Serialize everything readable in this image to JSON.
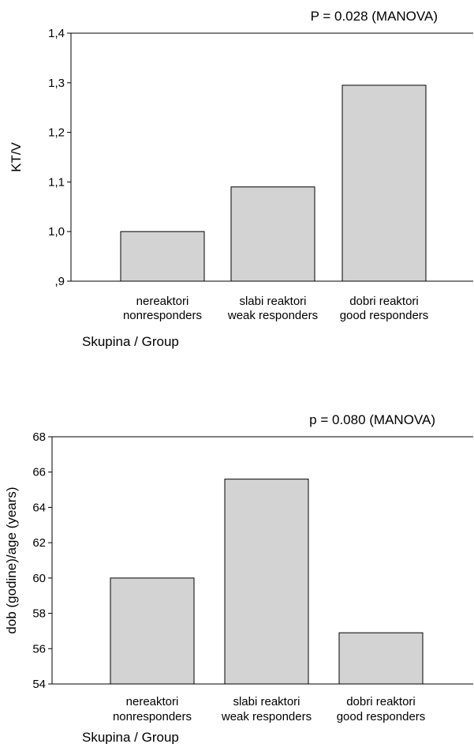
{
  "chart_data": [
    {
      "type": "bar",
      "annotation": "P = 0.028 (MANOVA)",
      "ylabel": "KT/V",
      "xlabel": "Skupina / Group",
      "categories": [
        [
          "nereaktori",
          "nonresponders"
        ],
        [
          "slabi reaktori",
          "weak responders"
        ],
        [
          "dobri reaktori",
          "good responders"
        ]
      ],
      "values": [
        1.0,
        1.09,
        1.295
      ],
      "ylim": [
        0.9,
        1.4
      ],
      "yticks": [
        0.9,
        1.0,
        1.1,
        1.2,
        1.3,
        1.4
      ],
      "ytick_labels": [
        ",9",
        "1,0",
        "1,1",
        "1,2",
        "1,3",
        "1,4"
      ],
      "bar_color": "#d3d3d3",
      "grid": false
    },
    {
      "type": "bar",
      "annotation": "p = 0.080 (MANOVA)",
      "ylabel": "dob (godine)/age (years)",
      "xlabel": "Skupina / Group",
      "categories": [
        [
          "nereaktori",
          "nonresponders"
        ],
        [
          "slabi reaktori",
          "weak responders"
        ],
        [
          "dobri reaktori",
          "good responders"
        ]
      ],
      "values": [
        60.0,
        65.6,
        56.9
      ],
      "ylim": [
        54,
        68
      ],
      "yticks": [
        54,
        56,
        58,
        60,
        62,
        64,
        66,
        68
      ],
      "ytick_labels": [
        "54",
        "56",
        "58",
        "60",
        "62",
        "64",
        "66",
        "68"
      ],
      "bar_color": "#d3d3d3",
      "grid": false
    }
  ]
}
